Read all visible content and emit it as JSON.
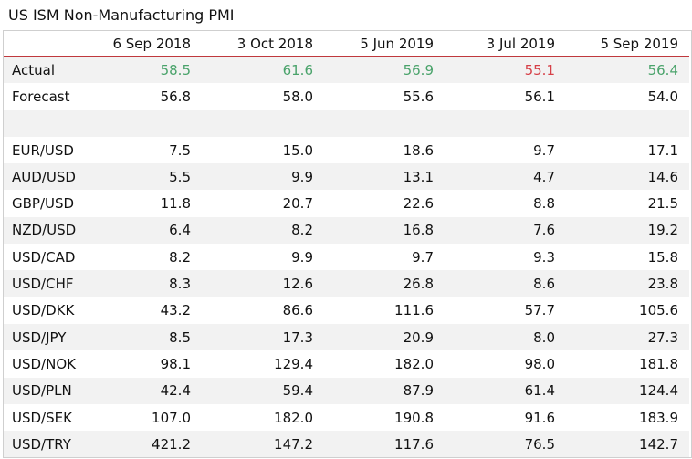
{
  "title": "US ISM Non-Manufacturing PMI",
  "colors": {
    "positive": "#4aa36b",
    "negative": "#d64048",
    "header_rule": "#c0383d",
    "stripe": "#f2f2f2"
  },
  "chart_data": {
    "type": "table",
    "title": "US ISM Non-Manufacturing PMI",
    "columns": [
      "6 Sep 2018",
      "3 Oct 2018",
      "5 Jun 2019",
      "3 Jul 2019",
      "5 Sep 2019"
    ],
    "rows": [
      {
        "label": "Actual",
        "values": [
          "58.5",
          "61.6",
          "56.9",
          "55.1",
          "56.4"
        ],
        "tones": [
          "pos",
          "pos",
          "pos",
          "neg",
          "pos"
        ]
      },
      {
        "label": "Forecast",
        "values": [
          "56.8",
          "58.0",
          "55.6",
          "56.1",
          "54.0"
        ]
      },
      {
        "label": "",
        "values": [
          "",
          "",
          "",
          "",
          ""
        ]
      },
      {
        "label": "EUR/USD",
        "values": [
          "7.5",
          "15.0",
          "18.6",
          "9.7",
          "17.1"
        ]
      },
      {
        "label": "AUD/USD",
        "values": [
          "5.5",
          "9.9",
          "13.1",
          "4.7",
          "14.6"
        ]
      },
      {
        "label": "GBP/USD",
        "values": [
          "11.8",
          "20.7",
          "22.6",
          "8.8",
          "21.5"
        ]
      },
      {
        "label": "NZD/USD",
        "values": [
          "6.4",
          "8.2",
          "16.8",
          "7.6",
          "19.2"
        ]
      },
      {
        "label": "USD/CAD",
        "values": [
          "8.2",
          "9.9",
          "9.7",
          "9.3",
          "15.8"
        ]
      },
      {
        "label": "USD/CHF",
        "values": [
          "8.3",
          "12.6",
          "26.8",
          "8.6",
          "23.8"
        ]
      },
      {
        "label": "USD/DKK",
        "values": [
          "43.2",
          "86.6",
          "111.6",
          "57.7",
          "105.6"
        ]
      },
      {
        "label": "USD/JPY",
        "values": [
          "8.5",
          "17.3",
          "20.9",
          "8.0",
          "27.3"
        ]
      },
      {
        "label": "USD/NOK",
        "values": [
          "98.1",
          "129.4",
          "182.0",
          "98.0",
          "181.8"
        ]
      },
      {
        "label": "USD/PLN",
        "values": [
          "42.4",
          "59.4",
          "87.9",
          "61.4",
          "124.4"
        ]
      },
      {
        "label": "USD/SEK",
        "values": [
          "107.0",
          "182.0",
          "190.8",
          "91.6",
          "183.9"
        ]
      },
      {
        "label": "USD/TRY",
        "values": [
          "421.2",
          "147.2",
          "117.6",
          "76.5",
          "142.7"
        ]
      }
    ]
  }
}
